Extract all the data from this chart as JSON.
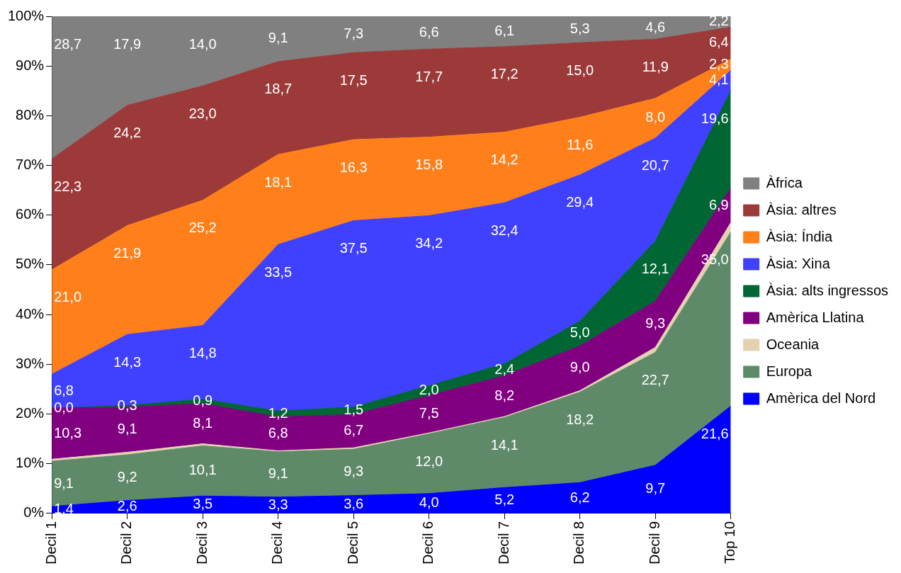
{
  "chart_data": {
    "type": "area",
    "stacked": true,
    "legend": "right",
    "categories": [
      "Decil 1",
      "Decil 2",
      "Decil 3",
      "Decil 4",
      "Decil 5",
      "Decil 6",
      "Decil 7",
      "Decil 8",
      "Decil 9",
      "Top 10"
    ],
    "ylim": [
      0,
      100
    ],
    "yticks": [
      {
        "value": 0,
        "label": "0%"
      },
      {
        "value": 10,
        "label": "10%"
      },
      {
        "value": 20,
        "label": "20%"
      },
      {
        "value": 30,
        "label": "30%"
      },
      {
        "value": 40,
        "label": "40%"
      },
      {
        "value": 50,
        "label": "50%"
      },
      {
        "value": 60,
        "label": "60%"
      },
      {
        "value": 70,
        "label": "70%"
      },
      {
        "value": 80,
        "label": "80%"
      },
      {
        "value": 90,
        "label": "90%"
      },
      {
        "value": 100,
        "label": "100%"
      }
    ],
    "series": [
      {
        "name": "Amèrica del Nord",
        "color": "#0000ff",
        "values": [
          1.4,
          2.6,
          3.5,
          3.3,
          3.6,
          4.0,
          5.2,
          6.2,
          9.7,
          21.6
        ],
        "value_labels": [
          "1,4",
          "2,6",
          "3,5",
          "3,3",
          "3,6",
          "4,0",
          "5,2",
          "6,2",
          "9,7",
          "21,6"
        ]
      },
      {
        "name": "Europa",
        "color": "#5f8a6a",
        "values": [
          9.1,
          9.2,
          10.1,
          9.1,
          9.3,
          12.0,
          14.1,
          18.2,
          22.7,
          35.0
        ],
        "value_labels": [
          "9,1",
          "9,2",
          "10,1",
          "9,1",
          "9,3",
          "12,0",
          "14,1",
          "18,2",
          "22,7",
          "35,0"
        ]
      },
      {
        "name": "Oceania",
        "color": "#e3d1b0",
        "values": [
          0.4,
          0.5,
          0.4,
          0.2,
          0.3,
          0.2,
          0.2,
          0.3,
          1.0,
          1.9
        ]
      },
      {
        "name": "Amèrica Llatina",
        "color": "#800080",
        "values": [
          10.3,
          9.1,
          8.1,
          6.8,
          6.7,
          7.5,
          8.2,
          9.0,
          9.3,
          6.9
        ],
        "value_labels": [
          "10,3",
          "9,1",
          "8,1",
          "6,8",
          "6,7",
          "7,5",
          "8,2",
          "9,0",
          "9,3",
          "6,9"
        ]
      },
      {
        "name": "Àsia: alts ingressos",
        "color": "#006633",
        "values": [
          0.0,
          0.3,
          0.9,
          1.2,
          1.5,
          2.0,
          2.4,
          5.0,
          12.1,
          19.6
        ],
        "value_labels": [
          "0,0",
          "0,3",
          "0,9",
          "1,2",
          "1,5",
          "2,0",
          "2,4",
          "5,0",
          "12,1",
          "19,6"
        ]
      },
      {
        "name": "Àsia: Xina",
        "color": "#4040ff",
        "values": [
          6.8,
          14.3,
          14.8,
          33.5,
          37.5,
          34.2,
          32.4,
          29.4,
          20.7,
          4.1
        ],
        "value_labels": [
          "6,8",
          "14,3",
          "14,8",
          "33,5",
          "37,5",
          "34,2",
          "32,4",
          "29,4",
          "20,7",
          "4,1"
        ]
      },
      {
        "name": "Àsia: Índia",
        "color": "#ff7f1a",
        "values": [
          21.0,
          21.9,
          25.2,
          18.1,
          16.3,
          15.8,
          14.2,
          11.6,
          8.0,
          2.3
        ],
        "value_labels": [
          "21,0",
          "21,9",
          "25,2",
          "18,1",
          "16,3",
          "15,8",
          "14,2",
          "11,6",
          "8,0",
          "2,3"
        ]
      },
      {
        "name": "Àsia: altres",
        "color": "#9c3a3a",
        "values": [
          22.3,
          24.2,
          23.0,
          18.7,
          17.5,
          17.7,
          17.2,
          15.0,
          11.9,
          6.4
        ],
        "value_labels": [
          "22,3",
          "24,2",
          "23,0",
          "18,7",
          "17,5",
          "17,7",
          "17,2",
          "15,0",
          "11,9",
          "6,4"
        ]
      },
      {
        "name": "Àfrica",
        "color": "#808080",
        "values": [
          28.7,
          17.9,
          14.0,
          9.1,
          7.3,
          6.6,
          6.1,
          5.3,
          4.6,
          2.2
        ],
        "value_labels": [
          "28,7",
          "17,9",
          "14,0",
          "9,1",
          "7,3",
          "6,6",
          "6,1",
          "5,3",
          "4,6",
          "2,2"
        ]
      }
    ]
  }
}
